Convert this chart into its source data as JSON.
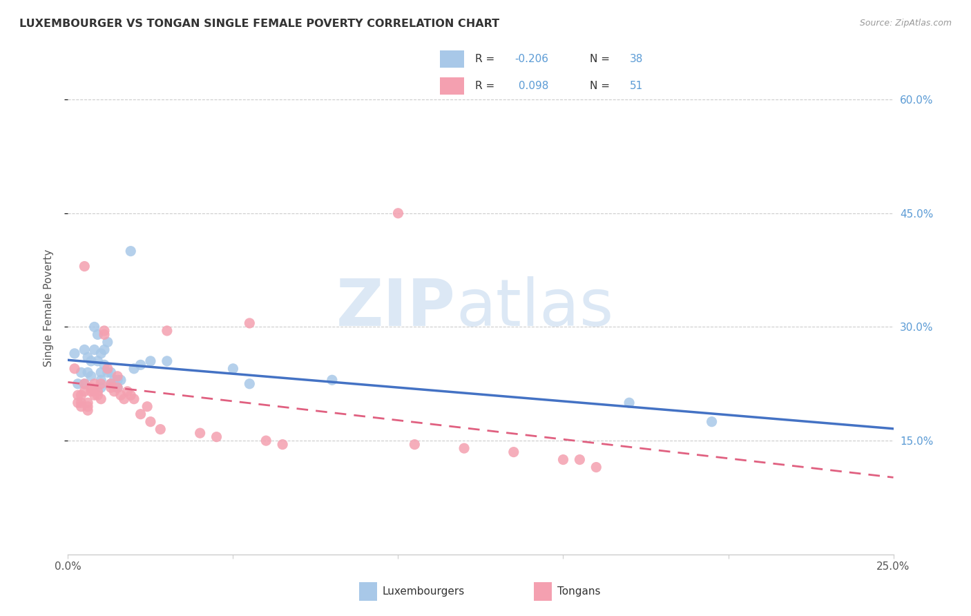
{
  "title": "LUXEMBOURGER VS TONGAN SINGLE FEMALE POVERTY CORRELATION CHART",
  "source": "Source: ZipAtlas.com",
  "ylabel": "Single Female Poverty",
  "legend_lux": "Luxembourgers",
  "legend_ton": "Tongans",
  "lux_R": "-0.206",
  "lux_N": "38",
  "ton_R": "0.098",
  "ton_N": "51",
  "xlim": [
    0.0,
    0.25
  ],
  "ylim": [
    0.0,
    0.65
  ],
  "yticks": [
    0.15,
    0.3,
    0.45,
    0.6
  ],
  "ytick_labels": [
    "15.0%",
    "30.0%",
    "45.0%",
    "60.0%"
  ],
  "right_axis_color": "#5b9bd5",
  "lux_color": "#a8c8e8",
  "ton_color": "#f4a0b0",
  "lux_line_color": "#4472c4",
  "ton_line_color": "#e06080",
  "lux_scatter": [
    [
      0.002,
      0.265
    ],
    [
      0.003,
      0.225
    ],
    [
      0.004,
      0.24
    ],
    [
      0.005,
      0.27
    ],
    [
      0.005,
      0.225
    ],
    [
      0.006,
      0.24
    ],
    [
      0.006,
      0.26
    ],
    [
      0.007,
      0.235
    ],
    [
      0.007,
      0.255
    ],
    [
      0.008,
      0.3
    ],
    [
      0.008,
      0.27
    ],
    [
      0.009,
      0.29
    ],
    [
      0.009,
      0.255
    ],
    [
      0.01,
      0.24
    ],
    [
      0.01,
      0.265
    ],
    [
      0.01,
      0.23
    ],
    [
      0.01,
      0.22
    ],
    [
      0.011,
      0.27
    ],
    [
      0.011,
      0.25
    ],
    [
      0.012,
      0.28
    ],
    [
      0.012,
      0.24
    ],
    [
      0.013,
      0.24
    ],
    [
      0.013,
      0.225
    ],
    [
      0.014,
      0.23
    ],
    [
      0.014,
      0.225
    ],
    [
      0.015,
      0.23
    ],
    [
      0.015,
      0.22
    ],
    [
      0.016,
      0.23
    ],
    [
      0.019,
      0.4
    ],
    [
      0.02,
      0.245
    ],
    [
      0.022,
      0.25
    ],
    [
      0.025,
      0.255
    ],
    [
      0.03,
      0.255
    ],
    [
      0.05,
      0.245
    ],
    [
      0.055,
      0.225
    ],
    [
      0.08,
      0.23
    ],
    [
      0.17,
      0.2
    ],
    [
      0.195,
      0.175
    ]
  ],
  "ton_scatter": [
    [
      0.002,
      0.245
    ],
    [
      0.003,
      0.2
    ],
    [
      0.003,
      0.21
    ],
    [
      0.004,
      0.21
    ],
    [
      0.004,
      0.2
    ],
    [
      0.004,
      0.195
    ],
    [
      0.005,
      0.225
    ],
    [
      0.005,
      0.215
    ],
    [
      0.005,
      0.38
    ],
    [
      0.006,
      0.19
    ],
    [
      0.006,
      0.2
    ],
    [
      0.006,
      0.195
    ],
    [
      0.007,
      0.215
    ],
    [
      0.007,
      0.22
    ],
    [
      0.008,
      0.225
    ],
    [
      0.008,
      0.215
    ],
    [
      0.008,
      0.21
    ],
    [
      0.009,
      0.215
    ],
    [
      0.009,
      0.21
    ],
    [
      0.01,
      0.205
    ],
    [
      0.01,
      0.225
    ],
    [
      0.011,
      0.29
    ],
    [
      0.011,
      0.295
    ],
    [
      0.012,
      0.245
    ],
    [
      0.013,
      0.22
    ],
    [
      0.013,
      0.225
    ],
    [
      0.014,
      0.215
    ],
    [
      0.015,
      0.235
    ],
    [
      0.015,
      0.22
    ],
    [
      0.016,
      0.21
    ],
    [
      0.017,
      0.205
    ],
    [
      0.018,
      0.215
    ],
    [
      0.019,
      0.21
    ],
    [
      0.02,
      0.205
    ],
    [
      0.022,
      0.185
    ],
    [
      0.024,
      0.195
    ],
    [
      0.025,
      0.175
    ],
    [
      0.028,
      0.165
    ],
    [
      0.03,
      0.295
    ],
    [
      0.04,
      0.16
    ],
    [
      0.045,
      0.155
    ],
    [
      0.055,
      0.305
    ],
    [
      0.06,
      0.15
    ],
    [
      0.065,
      0.145
    ],
    [
      0.1,
      0.45
    ],
    [
      0.105,
      0.145
    ],
    [
      0.12,
      0.14
    ],
    [
      0.135,
      0.135
    ],
    [
      0.15,
      0.125
    ],
    [
      0.155,
      0.125
    ],
    [
      0.16,
      0.115
    ]
  ],
  "background_color": "#ffffff",
  "grid_color": "#cccccc",
  "watermark_zip": "ZIP",
  "watermark_atlas": "atlas",
  "watermark_color_zip": "#dce8f5",
  "watermark_color_atlas": "#dce8f5"
}
